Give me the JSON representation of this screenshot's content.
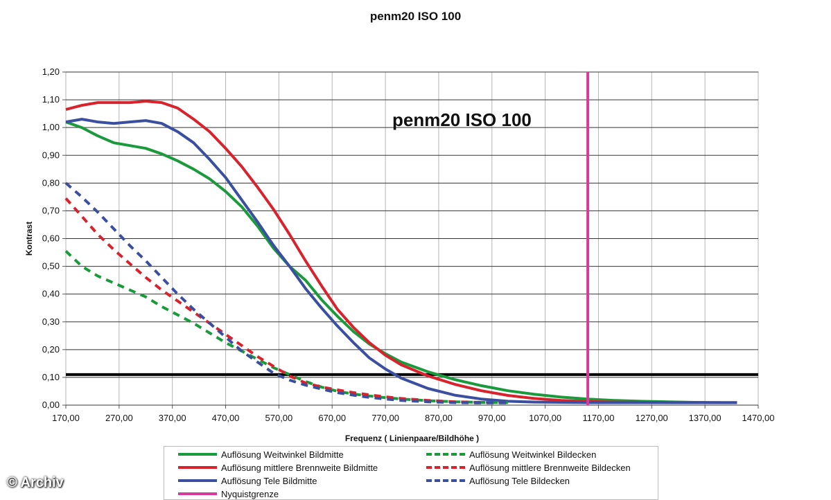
{
  "chart_data": {
    "type": "line",
    "title": "penm20 ISO 100",
    "inner_title": "penm20 ISO 100",
    "xlabel": "Frequenz ( Linienpaare/Bildhöhe )",
    "ylabel": "Kontrast",
    "xlim": [
      170,
      1470
    ],
    "ylim": [
      0,
      1.2
    ],
    "x_ticks": [
      "170,00",
      "270,00",
      "370,00",
      "470,00",
      "570,00",
      "670,00",
      "770,00",
      "870,00",
      "970,00",
      "1070,00",
      "1170,00",
      "1270,00",
      "1370,00",
      "1470,00"
    ],
    "y_ticks": [
      "0,00",
      "0,10",
      "0,20",
      "0,30",
      "0,40",
      "0,50",
      "0,60",
      "0,70",
      "0,80",
      "0,90",
      "1,00",
      "1,10",
      "1,20"
    ],
    "reference_line_y": 0.11,
    "nyquist_x": 1150,
    "series": [
      {
        "name": "Auflösung Weitwinkel Bildmitte",
        "color": "#1a9a3a",
        "style": "solid",
        "x": [
          170,
          200,
          230,
          260,
          290,
          320,
          350,
          380,
          410,
          440,
          470,
          500,
          530,
          560,
          590,
          620,
          650,
          680,
          710,
          740,
          770,
          800,
          850,
          900,
          950,
          1000,
          1050,
          1100,
          1150,
          1200,
          1250,
          1300,
          1350,
          1400,
          1430
        ],
        "y": [
          1.02,
          1.0,
          0.97,
          0.945,
          0.935,
          0.925,
          0.905,
          0.88,
          0.85,
          0.815,
          0.77,
          0.715,
          0.645,
          0.565,
          0.5,
          0.45,
          0.38,
          0.32,
          0.265,
          0.22,
          0.185,
          0.155,
          0.12,
          0.092,
          0.07,
          0.052,
          0.039,
          0.029,
          0.022,
          0.017,
          0.014,
          0.012,
          0.01,
          0.009,
          0.009
        ]
      },
      {
        "name": "Auflösung mittlere Brennweite Bildmitte",
        "color": "#d8222c",
        "style": "solid",
        "x": [
          170,
          200,
          230,
          260,
          290,
          320,
          350,
          380,
          410,
          440,
          470,
          500,
          530,
          560,
          590,
          620,
          650,
          680,
          710,
          740,
          770,
          800,
          850,
          900,
          950,
          1000,
          1050,
          1100,
          1150,
          1200,
          1250,
          1300,
          1350,
          1400,
          1430
        ],
        "y": [
          1.065,
          1.08,
          1.09,
          1.09,
          1.09,
          1.095,
          1.09,
          1.07,
          1.03,
          0.985,
          0.925,
          0.86,
          0.785,
          0.705,
          0.615,
          0.52,
          0.43,
          0.345,
          0.28,
          0.225,
          0.18,
          0.145,
          0.105,
          0.075,
          0.052,
          0.035,
          0.024,
          0.017,
          0.013,
          0.011,
          0.01,
          0.009,
          0.009,
          0.009,
          0.009
        ]
      },
      {
        "name": "Auflösung Tele Bildmitte",
        "color": "#3a4fa0",
        "style": "solid",
        "x": [
          170,
          200,
          230,
          260,
          290,
          320,
          350,
          380,
          410,
          440,
          470,
          500,
          530,
          560,
          590,
          620,
          650,
          680,
          710,
          740,
          770,
          800,
          850,
          900,
          950,
          1000,
          1050,
          1100,
          1150,
          1200,
          1250,
          1300,
          1350,
          1400,
          1430
        ],
        "y": [
          1.02,
          1.03,
          1.02,
          1.015,
          1.02,
          1.025,
          1.015,
          0.985,
          0.945,
          0.885,
          0.82,
          0.74,
          0.66,
          0.575,
          0.5,
          0.42,
          0.35,
          0.285,
          0.225,
          0.17,
          0.13,
          0.097,
          0.06,
          0.036,
          0.022,
          0.014,
          0.011,
          0.01,
          0.009,
          0.009,
          0.009,
          0.009,
          0.009,
          0.009,
          0.009
        ]
      },
      {
        "name": "Auflösung Weitwinkel Bildecken",
        "color": "#1a9a3a",
        "style": "dashed",
        "x": [
          170,
          200,
          230,
          260,
          290,
          320,
          350,
          380,
          410,
          440,
          470,
          500,
          530,
          560,
          590,
          620,
          650,
          680,
          710,
          740,
          770,
          800,
          850,
          900,
          950,
          1000
        ],
        "y": [
          0.555,
          0.5,
          0.465,
          0.44,
          0.415,
          0.39,
          0.355,
          0.325,
          0.295,
          0.26,
          0.225,
          0.195,
          0.165,
          0.135,
          0.11,
          0.085,
          0.065,
          0.05,
          0.04,
          0.033,
          0.027,
          0.022,
          0.016,
          0.012,
          0.01,
          0.009
        ]
      },
      {
        "name": "Auflösung mittlere Brennweite Bildecken",
        "color": "#d8222c",
        "style": "dashed",
        "x": [
          170,
          200,
          230,
          260,
          290,
          320,
          350,
          380,
          410,
          440,
          470,
          500,
          530,
          560,
          590,
          620,
          650,
          680,
          710,
          740,
          770,
          800,
          850,
          900,
          950,
          1000
        ],
        "y": [
          0.745,
          0.68,
          0.615,
          0.56,
          0.51,
          0.46,
          0.415,
          0.375,
          0.335,
          0.295,
          0.255,
          0.215,
          0.175,
          0.14,
          0.105,
          0.08,
          0.065,
          0.055,
          0.045,
          0.037,
          0.03,
          0.024,
          0.017,
          0.012,
          0.01,
          0.009
        ]
      },
      {
        "name": "Auflösung Tele Bildecken",
        "color": "#3a4fa0",
        "style": "dashed",
        "x": [
          170,
          200,
          230,
          260,
          290,
          320,
          350,
          380,
          410,
          440,
          470,
          500,
          530,
          560,
          590,
          620,
          650,
          680,
          710,
          740,
          770,
          800,
          850,
          900,
          950,
          1000
        ],
        "y": [
          0.8,
          0.75,
          0.695,
          0.635,
          0.575,
          0.52,
          0.46,
          0.4,
          0.345,
          0.295,
          0.245,
          0.195,
          0.155,
          0.115,
          0.09,
          0.072,
          0.058,
          0.045,
          0.036,
          0.028,
          0.022,
          0.017,
          0.012,
          0.009,
          0.008,
          0.008
        ]
      },
      {
        "name": "Nyquistgrenze",
        "color": "#d63a9c",
        "style": "solid",
        "x": [
          1150,
          1150
        ],
        "y": [
          0,
          1.2
        ]
      }
    ]
  },
  "watermark": "© Archiv"
}
